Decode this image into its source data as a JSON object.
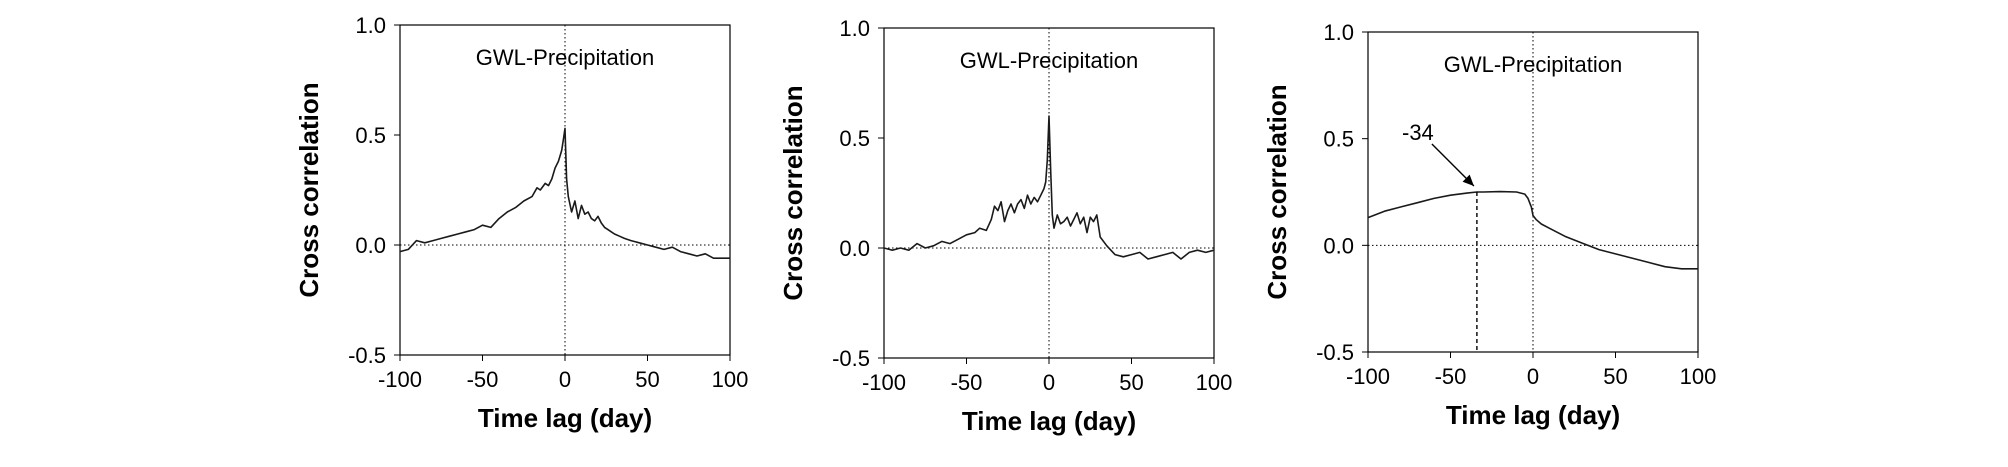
{
  "chart_data": [
    {
      "type": "line",
      "title": "GWL-Precipitation",
      "xlabel": "Time lag (day)",
      "ylabel": "Cross correlation",
      "xlim": [
        -100,
        100
      ],
      "ylim": [
        -0.5,
        1.0
      ],
      "xticks": [
        "-100",
        "-50",
        "0",
        "50",
        "100"
      ],
      "yticks": [
        "1.0",
        "0.5",
        "0.0",
        "-0.5"
      ],
      "series": [
        {
          "name": "Cross correlation",
          "x": [
            -100,
            -95,
            -90,
            -85,
            -80,
            -75,
            -70,
            -65,
            -60,
            -55,
            -50,
            -45,
            -40,
            -35,
            -30,
            -25,
            -20,
            -17,
            -15,
            -12,
            -10,
            -8,
            -6,
            -4,
            -2,
            -1,
            0,
            1,
            2,
            4,
            6,
            8,
            10,
            12,
            14,
            16,
            18,
            20,
            22,
            24,
            26,
            28,
            30,
            33,
            36,
            40,
            45,
            50,
            55,
            60,
            65,
            70,
            75,
            80,
            85,
            90,
            95,
            100
          ],
          "values": [
            -0.03,
            -0.02,
            0.02,
            0.01,
            0.02,
            0.03,
            0.04,
            0.05,
            0.06,
            0.07,
            0.09,
            0.08,
            0.12,
            0.15,
            0.17,
            0.2,
            0.22,
            0.26,
            0.25,
            0.28,
            0.27,
            0.3,
            0.35,
            0.38,
            0.43,
            0.48,
            0.53,
            0.3,
            0.22,
            0.15,
            0.2,
            0.12,
            0.18,
            0.14,
            0.15,
            0.12,
            0.11,
            0.13,
            0.1,
            0.08,
            0.07,
            0.06,
            0.05,
            0.04,
            0.03,
            0.02,
            0.01,
            0.0,
            -0.01,
            -0.02,
            -0.01,
            -0.03,
            -0.04,
            -0.05,
            -0.04,
            -0.06,
            -0.06,
            -0.06
          ]
        }
      ],
      "reference_lines": {
        "x": 0,
        "y": 0
      }
    },
    {
      "type": "line",
      "title": "GWL-Precipitation",
      "xlabel": "Time lag (day)",
      "ylabel": "Cross correlation",
      "xlim": [
        -100,
        100
      ],
      "ylim": [
        -0.5,
        1.0
      ],
      "xticks": [
        "-100",
        "-50",
        "0",
        "50",
        "100"
      ],
      "yticks": [
        "1.0",
        "0.5",
        "0.0",
        "-0.5"
      ],
      "series": [
        {
          "name": "Cross correlation",
          "x": [
            -100,
            -95,
            -90,
            -85,
            -80,
            -75,
            -70,
            -65,
            -60,
            -55,
            -50,
            -45,
            -42,
            -38,
            -35,
            -33,
            -31,
            -29,
            -27,
            -25,
            -23,
            -21,
            -19,
            -17,
            -15,
            -13,
            -11,
            -9,
            -7,
            -5,
            -3,
            -2,
            -1,
            0,
            1,
            2,
            3,
            5,
            7,
            9,
            11,
            13,
            15,
            17,
            19,
            21,
            23,
            25,
            27,
            29,
            31,
            35,
            40,
            45,
            50,
            55,
            60,
            65,
            70,
            75,
            80,
            85,
            90,
            95,
            100
          ],
          "values": [
            0.0,
            -0.01,
            0.0,
            -0.01,
            0.02,
            0.0,
            0.01,
            0.03,
            0.02,
            0.04,
            0.06,
            0.07,
            0.09,
            0.08,
            0.13,
            0.19,
            0.17,
            0.21,
            0.12,
            0.17,
            0.2,
            0.16,
            0.2,
            0.22,
            0.18,
            0.24,
            0.2,
            0.23,
            0.21,
            0.24,
            0.27,
            0.3,
            0.4,
            0.6,
            0.35,
            0.15,
            0.09,
            0.15,
            0.11,
            0.12,
            0.14,
            0.1,
            0.13,
            0.16,
            0.11,
            0.14,
            0.07,
            0.14,
            0.12,
            0.15,
            0.05,
            0.01,
            -0.03,
            -0.04,
            -0.03,
            -0.02,
            -0.05,
            -0.04,
            -0.03,
            -0.02,
            -0.05,
            -0.02,
            -0.01,
            -0.02,
            -0.01
          ]
        }
      ],
      "reference_lines": {
        "x": 0,
        "y": 0
      }
    },
    {
      "type": "line",
      "title": "GWL-Precipitation",
      "xlabel": "Time lag (day)",
      "ylabel": "Cross correlation",
      "xlim": [
        -100,
        100
      ],
      "ylim": [
        -0.5,
        1.0
      ],
      "xticks": [
        "-100",
        "-50",
        "0",
        "50",
        "100"
      ],
      "yticks": [
        "1.0",
        "0.5",
        "0.0",
        "-0.5"
      ],
      "series": [
        {
          "name": "Cross correlation",
          "x": [
            -100,
            -90,
            -80,
            -70,
            -60,
            -50,
            -40,
            -34,
            -30,
            -20,
            -10,
            -5,
            -3,
            -1,
            0,
            2,
            5,
            10,
            20,
            30,
            40,
            50,
            60,
            70,
            80,
            90,
            100
          ],
          "values": [
            0.13,
            0.16,
            0.18,
            0.2,
            0.22,
            0.235,
            0.245,
            0.25,
            0.25,
            0.252,
            0.25,
            0.24,
            0.22,
            0.18,
            0.14,
            0.12,
            0.1,
            0.08,
            0.04,
            0.01,
            -0.02,
            -0.04,
            -0.06,
            -0.08,
            -0.1,
            -0.11,
            -0.11
          ]
        }
      ],
      "reference_lines": {
        "x": 0,
        "y": 0
      },
      "annotation": {
        "text": "-34",
        "x": -34,
        "y": 0.25
      }
    }
  ]
}
